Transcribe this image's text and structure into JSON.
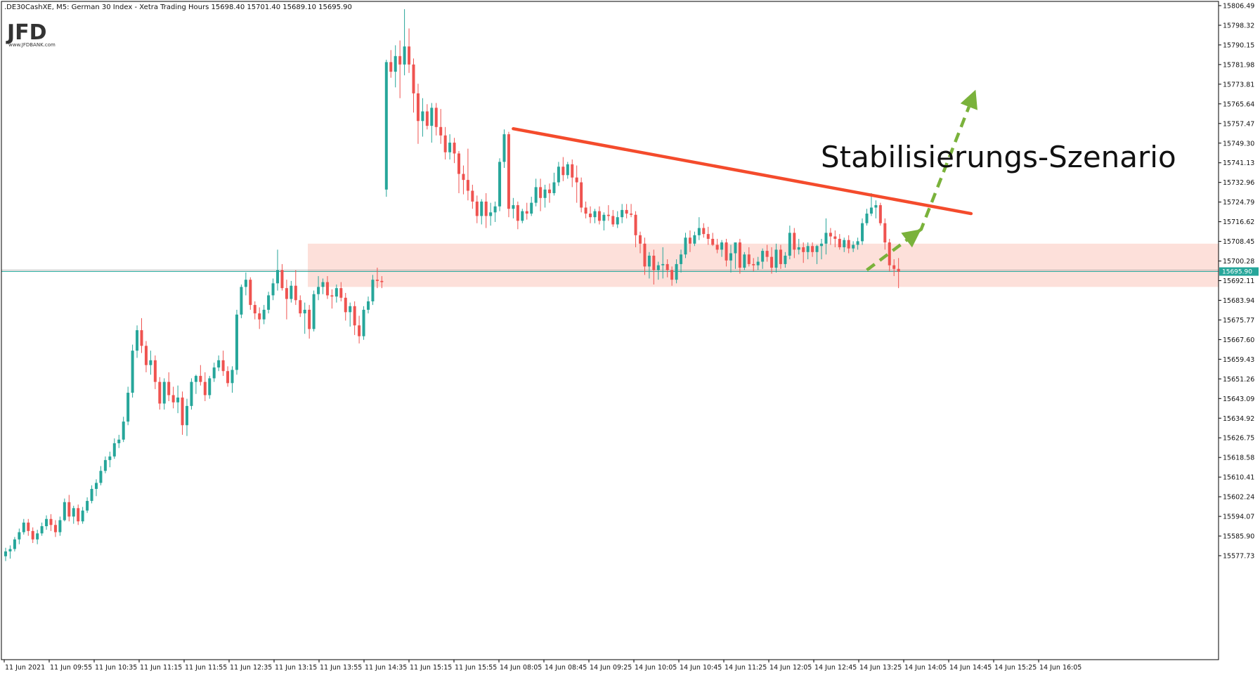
{
  "header": {
    "title": ".DE30CashXE, M5:  German 30 Index  - Xetra Trading Hours  15698.40 15701.40 15689.10 15695.90"
  },
  "logo": {
    "text": "JFD",
    "subtext": "www.JFDBANK.com"
  },
  "annotation": {
    "text": "Stabilisierungs-Szenario"
  },
  "colors": {
    "up": "#26a69a",
    "down": "#ef5350",
    "trendline": "#f44b2c",
    "zone": "#fddbd3",
    "arrow": "#7ab23b",
    "lastprice": "#26a69a"
  },
  "chart_data": {
    "type": "candlestick",
    "ylim": [
      15572,
      15808
    ],
    "y_ticks": [
      "15806.49",
      "15798.32",
      "15790.15",
      "15781.98",
      "15773.81",
      "15765.64",
      "15757.47",
      "15749.30",
      "15741.13",
      "15732.96",
      "15724.79",
      "15716.62",
      "15708.45",
      "15700.28",
      "15692.11",
      "15683.94",
      "15675.77",
      "15667.60",
      "15659.43",
      "15651.26",
      "15643.09",
      "15634.92",
      "15626.75",
      "15618.58",
      "15610.41",
      "15602.24",
      "15594.07",
      "15585.90",
      "15577.73"
    ],
    "x_ticks": [
      "11 Jun 2021",
      "11 Jun 09:55",
      "11 Jun 10:35",
      "11 Jun 11:15",
      "11 Jun 11:55",
      "11 Jun 12:35",
      "11 Jun 13:15",
      "11 Jun 13:55",
      "11 Jun 14:35",
      "11 Jun 15:15",
      "11 Jun 15:55",
      "14 Jun 08:05",
      "14 Jun 08:45",
      "14 Jun 09:25",
      "14 Jun 10:05",
      "14 Jun 10:45",
      "14 Jun 11:25",
      "14 Jun 12:05",
      "14 Jun 12:45",
      "14 Jun 13:25",
      "14 Jun 14:05",
      "14 Jun 14:45",
      "14 Jun 15:25",
      "14 Jun 16:05"
    ],
    "last_price": {
      "value": 15695.9,
      "label": "15695.90"
    },
    "support_zone": {
      "from": 15689.5,
      "to": 15707.5
    },
    "trendline": {
      "from": {
        "bar": 112,
        "price": 15755.3
      },
      "to": {
        "bar": 213,
        "price": 15720.0
      }
    },
    "projection": [
      {
        "bar": 190,
        "price": 15696.5
      },
      {
        "bar": 202,
        "price": 15713.5
      },
      {
        "bar": 214,
        "price": 15771.5
      }
    ],
    "candles": [
      [
        15577.5,
        15581.0,
        15575.5,
        15579.5
      ],
      [
        15579.5,
        15582.0,
        15576.5,
        15580.5
      ],
      [
        15580.5,
        15585.5,
        15579.5,
        15584.5
      ],
      [
        15584.5,
        15589.0,
        15582.5,
        15587.5
      ],
      [
        15587.5,
        15593.0,
        15586.5,
        15591.5
      ],
      [
        15591.5,
        15593.0,
        15586.0,
        15588.0
      ],
      [
        15588.0,
        15589.5,
        15583.0,
        15584.5
      ],
      [
        15584.5,
        15588.5,
        15582.5,
        15587.0
      ],
      [
        15587.0,
        15591.5,
        15586.0,
        15590.0
      ],
      [
        15590.0,
        15594.5,
        15588.5,
        15593.0
      ],
      [
        15593.0,
        15595.0,
        15588.0,
        15590.5
      ],
      [
        15590.5,
        15592.5,
        15585.5,
        15587.5
      ],
      [
        15587.5,
        15594.0,
        15586.0,
        15592.5
      ],
      [
        15592.5,
        15601.5,
        15592.0,
        15600.0
      ],
      [
        15600.0,
        15603.0,
        15592.0,
        15594.0
      ],
      [
        15594.0,
        15598.5,
        15591.0,
        15597.5
      ],
      [
        15597.5,
        15599.0,
        15590.5,
        15592.0
      ],
      [
        15592.0,
        15598.0,
        15591.0,
        15596.5
      ],
      [
        15596.5,
        15602.0,
        15595.5,
        15600.5
      ],
      [
        15600.5,
        15607.0,
        15599.5,
        15605.5
      ],
      [
        15605.5,
        15609.5,
        15602.5,
        15608.0
      ],
      [
        15608.0,
        15615.0,
        15607.0,
        15613.0
      ],
      [
        15613.0,
        15619.0,
        15612.0,
        15617.5
      ],
      [
        15617.5,
        15621.0,
        15614.5,
        15619.0
      ],
      [
        15619.0,
        15626.5,
        15618.0,
        15624.5
      ],
      [
        15624.5,
        15628.0,
        15622.5,
        15626.0
      ],
      [
        15626.0,
        15635.5,
        15625.0,
        15633.5
      ],
      [
        15633.5,
        15648.0,
        15632.0,
        15645.5
      ],
      [
        15645.5,
        15665.5,
        15643.5,
        15663.0
      ],
      [
        15663.0,
        15673.5,
        15660.0,
        15671.5
      ],
      [
        15671.5,
        15676.5,
        15662.0,
        15665.0
      ],
      [
        15665.0,
        15667.0,
        15654.0,
        15657.0
      ],
      [
        15657.0,
        15663.0,
        15653.0,
        15659.0
      ],
      [
        15659.0,
        15661.0,
        15647.0,
        15650.0
      ],
      [
        15650.0,
        15652.0,
        15638.5,
        15641.0
      ],
      [
        15641.0,
        15651.5,
        15638.5,
        15650.0
      ],
      [
        15650.0,
        15654.0,
        15642.0,
        15644.5
      ],
      [
        15644.5,
        15648.0,
        15639.0,
        15641.5
      ],
      [
        15641.5,
        15648.5,
        15637.0,
        15643.5
      ],
      [
        15643.5,
        15646.0,
        15628.0,
        15632.0
      ],
      [
        15632.0,
        15643.0,
        15627.5,
        15640.0
      ],
      [
        15640.0,
        15651.5,
        15638.5,
        15650.0
      ],
      [
        15650.0,
        15653.0,
        15645.0,
        15652.5
      ],
      [
        15652.5,
        15657.0,
        15648.5,
        15650.0
      ],
      [
        15650.0,
        15654.0,
        15642.0,
        15644.5
      ],
      [
        15644.5,
        15652.5,
        15643.0,
        15651.5
      ],
      [
        15651.5,
        15658.0,
        15650.0,
        15656.0
      ],
      [
        15656.0,
        15661.0,
        15654.5,
        15659.0
      ],
      [
        15659.0,
        15663.0,
        15652.5,
        15654.5
      ],
      [
        15654.5,
        15656.5,
        15648.0,
        15649.5
      ],
      [
        15649.5,
        15656.5,
        15645.5,
        15655.0
      ],
      [
        15655.0,
        15680.0,
        15653.0,
        15678.0
      ],
      [
        15678.0,
        15690.5,
        15676.5,
        15689.5
      ],
      [
        15689.5,
        15695.5,
        15686.0,
        15692.5
      ],
      [
        15692.5,
        15693.5,
        15680.0,
        15682.0
      ],
      [
        15682.0,
        15683.5,
        15676.0,
        15678.5
      ],
      [
        15678.5,
        15681.0,
        15672.0,
        15676.0
      ],
      [
        15676.0,
        15682.0,
        15674.0,
        15680.0
      ],
      [
        15680.0,
        15687.5,
        15678.5,
        15686.0
      ],
      [
        15686.0,
        15693.0,
        15684.0,
        15691.0
      ],
      [
        15691.0,
        15705.0,
        15688.0,
        15696.5
      ],
      [
        15696.5,
        15699.0,
        15688.0,
        15689.0
      ],
      [
        15689.0,
        15692.5,
        15676.0,
        15684.5
      ],
      [
        15684.5,
        15692.0,
        15683.0,
        15690.0
      ],
      [
        15690.0,
        15696.5,
        15682.0,
        15684.0
      ],
      [
        15684.0,
        15686.0,
        15677.0,
        15678.5
      ],
      [
        15678.5,
        15683.0,
        15670.0,
        15680.0
      ],
      [
        15680.0,
        15682.0,
        15668.0,
        15672.0
      ],
      [
        15672.0,
        15688.0,
        15671.0,
        15686.5
      ],
      [
        15686.5,
        15694.0,
        15684.0,
        15689.5
      ],
      [
        15689.5,
        15693.0,
        15686.5,
        15691.5
      ],
      [
        15691.5,
        15694.0,
        15684.5,
        15686.0
      ],
      [
        15686.0,
        15688.5,
        15680.5,
        15685.5
      ],
      [
        15685.5,
        15690.5,
        15683.0,
        15689.0
      ],
      [
        15689.0,
        15691.5,
        15683.5,
        15685.0
      ],
      [
        15685.0,
        15687.0,
        15675.5,
        15679.0
      ],
      [
        15679.0,
        15683.0,
        15673.0,
        15681.5
      ],
      [
        15681.5,
        15683.5,
        15669.5,
        15673.5
      ],
      [
        15673.5,
        15677.5,
        15666.0,
        15669.0
      ],
      [
        15669.0,
        15681.5,
        15667.5,
        15680.0
      ],
      [
        15680.0,
        15685.5,
        15678.5,
        15683.5
      ],
      [
        15683.5,
        15694.5,
        15682.0,
        15692.5
      ],
      [
        15692.5,
        15697.5,
        15689.0,
        15692.0
      ],
      [
        15692.0,
        15694.0,
        15689.0,
        15691.5
      ],
      [
        15730.0,
        15784.0,
        15727.0,
        15783.0
      ],
      [
        15783.0,
        15788.0,
        15776.5,
        15779.0
      ],
      [
        15779.0,
        15790.0,
        15772.5,
        15785.5
      ],
      [
        15785.5,
        15792.0,
        15768.0,
        15782.0
      ],
      [
        15782.0,
        15805.0,
        15777.5,
        15789.5
      ],
      [
        15789.5,
        15797.0,
        15778.5,
        15782.0
      ],
      [
        15782.0,
        15784.5,
        15762.0,
        15770.0
      ],
      [
        15770.0,
        15774.0,
        15749.0,
        15758.5
      ],
      [
        15758.5,
        15768.0,
        15752.0,
        15762.5
      ],
      [
        15762.5,
        15765.5,
        15755.0,
        15756.5
      ],
      [
        15756.5,
        15766.0,
        15749.5,
        15764.0
      ],
      [
        15764.0,
        15766.0,
        15752.5,
        15756.0
      ],
      [
        15756.0,
        15763.5,
        15749.0,
        15752.5
      ],
      [
        15752.5,
        15756.0,
        15742.5,
        15745.5
      ],
      [
        15745.5,
        15753.0,
        15742.5,
        15749.5
      ],
      [
        15749.5,
        15751.5,
        15741.0,
        15745.0
      ],
      [
        15745.0,
        15746.0,
        15728.5,
        15736.5
      ],
      [
        15736.5,
        15740.0,
        15728.0,
        15734.0
      ],
      [
        15734.0,
        15747.0,
        15725.5,
        15729.5
      ],
      [
        15729.5,
        15732.0,
        15722.0,
        15725.0
      ],
      [
        15725.0,
        15727.5,
        15716.0,
        15719.0
      ],
      [
        15719.0,
        15726.0,
        15715.5,
        15725.0
      ],
      [
        15725.0,
        15728.5,
        15714.0,
        15719.0
      ],
      [
        15719.0,
        15724.5,
        15715.0,
        15720.5
      ],
      [
        15720.5,
        15725.0,
        15716.5,
        15723.0
      ],
      [
        15723.0,
        15743.0,
        15721.0,
        15741.5
      ],
      [
        15741.5,
        15755.0,
        15739.0,
        15753.0
      ],
      [
        15753.0,
        15754.0,
        15718.5,
        15722.0
      ],
      [
        15722.0,
        15726.5,
        15718.0,
        15723.5
      ],
      [
        15723.5,
        15725.0,
        15713.5,
        15717.0
      ],
      [
        15717.0,
        15722.0,
        15716.0,
        15721.0
      ],
      [
        15721.0,
        15724.5,
        15717.5,
        15720.0
      ],
      [
        15720.0,
        15727.0,
        15719.0,
        15724.5
      ],
      [
        15724.5,
        15734.5,
        15723.0,
        15731.0
      ],
      [
        15731.0,
        15734.5,
        15721.0,
        15726.5
      ],
      [
        15726.5,
        15732.0,
        15722.5,
        15730.0
      ],
      [
        15730.0,
        15732.5,
        15724.5,
        15728.5
      ],
      [
        15728.5,
        15737.0,
        15727.5,
        15733.0
      ],
      [
        15733.0,
        15741.5,
        15731.5,
        15739.5
      ],
      [
        15739.5,
        15743.5,
        15733.5,
        15736.0
      ],
      [
        15736.0,
        15741.5,
        15734.5,
        15740.5
      ],
      [
        15740.5,
        15742.5,
        15731.0,
        15735.0
      ],
      [
        15735.0,
        15740.0,
        15724.5,
        15733.0
      ],
      [
        15733.0,
        15735.0,
        15720.5,
        15722.5
      ],
      [
        15722.5,
        15725.0,
        15718.0,
        15720.0
      ],
      [
        15720.0,
        15723.0,
        15716.0,
        15718.5
      ],
      [
        15718.5,
        15722.0,
        15716.0,
        15721.0
      ],
      [
        15721.0,
        15723.0,
        15715.5,
        15717.0
      ],
      [
        15717.0,
        15720.5,
        15713.0,
        15719.5
      ],
      [
        15719.5,
        15723.5,
        15717.0,
        15719.0
      ],
      [
        15719.0,
        15721.5,
        15714.5,
        15715.5
      ],
      [
        15715.5,
        15721.0,
        15714.0,
        15718.5
      ],
      [
        15718.5,
        15724.0,
        15716.0,
        15721.5
      ],
      [
        15721.5,
        15724.0,
        15718.0,
        15720.0
      ],
      [
        15720.0,
        15724.0,
        15718.5,
        15719.5
      ],
      [
        15719.5,
        15721.0,
        15706.0,
        15711.0
      ],
      [
        15711.0,
        15712.5,
        15703.5,
        15707.5
      ],
      [
        15707.5,
        15710.0,
        15694.5,
        15698.0
      ],
      [
        15698.0,
        15704.0,
        15693.0,
        15702.5
      ],
      [
        15702.5,
        15705.0,
        15690.5,
        15696.5
      ],
      [
        15696.5,
        15700.0,
        15692.5,
        15698.5
      ],
      [
        15698.5,
        15706.0,
        15693.0,
        15699.0
      ],
      [
        15699.0,
        15701.0,
        15693.5,
        15696.5
      ],
      [
        15696.5,
        15698.0,
        15690.0,
        15692.5
      ],
      [
        15692.5,
        15701.0,
        15691.0,
        15699.0
      ],
      [
        15699.0,
        15705.0,
        15695.5,
        15703.0
      ],
      [
        15703.0,
        15712.0,
        15701.5,
        15710.0
      ],
      [
        15710.0,
        15713.0,
        15704.0,
        15707.5
      ],
      [
        15707.5,
        15712.5,
        15706.5,
        15711.0
      ],
      [
        15711.0,
        15718.5,
        15709.0,
        15714.0
      ],
      [
        15714.0,
        15716.0,
        15710.0,
        15711.5
      ],
      [
        15711.5,
        15714.5,
        15707.0,
        15709.5
      ],
      [
        15709.5,
        15712.0,
        15706.5,
        15707.0
      ],
      [
        15707.0,
        15709.5,
        15703.5,
        15705.0
      ],
      [
        15705.0,
        15709.0,
        15702.0,
        15708.0
      ],
      [
        15708.0,
        15709.5,
        15698.0,
        15700.5
      ],
      [
        15700.5,
        15707.0,
        15695.5,
        15703.5
      ],
      [
        15703.5,
        15706.5,
        15697.0,
        15708.0
      ],
      [
        15708.0,
        15709.5,
        15695.0,
        15697.5
      ],
      [
        15697.5,
        15704.0,
        15696.5,
        15703.0
      ],
      [
        15703.0,
        15706.0,
        15698.0,
        15699.0
      ],
      [
        15699.0,
        15701.5,
        15696.0,
        15698.5
      ],
      [
        15698.5,
        15702.0,
        15696.5,
        15700.0
      ],
      [
        15700.0,
        15705.5,
        15697.0,
        15704.5
      ],
      [
        15704.5,
        15707.0,
        15700.0,
        15702.0
      ],
      [
        15702.0,
        15706.0,
        15695.0,
        15697.5
      ],
      [
        15697.5,
        15707.5,
        15695.5,
        15705.0
      ],
      [
        15705.0,
        15707.0,
        15697.0,
        15699.0
      ],
      [
        15699.0,
        15704.0,
        15697.5,
        15702.5
      ],
      [
        15702.5,
        15715.0,
        15701.0,
        15712.0
      ],
      [
        15712.0,
        15714.0,
        15701.5,
        15705.0
      ],
      [
        15705.0,
        15709.5,
        15703.0,
        15706.0
      ],
      [
        15706.0,
        15708.0,
        15699.5,
        15704.0
      ],
      [
        15704.0,
        15708.0,
        15701.0,
        15706.5
      ],
      [
        15706.5,
        15708.0,
        15702.0,
        15704.0
      ],
      [
        15704.0,
        15707.0,
        15699.0,
        15706.5
      ],
      [
        15706.5,
        15709.5,
        15701.0,
        15707.5
      ],
      [
        15707.5,
        15718.0,
        15703.0,
        15712.0
      ],
      [
        15712.0,
        15714.0,
        15707.0,
        15710.5
      ],
      [
        15710.5,
        15713.0,
        15706.0,
        15709.5
      ],
      [
        15709.5,
        15711.5,
        15705.0,
        15706.0
      ],
      [
        15706.0,
        15710.0,
        15704.0,
        15709.0
      ],
      [
        15709.0,
        15711.0,
        15703.5,
        15705.5
      ],
      [
        15705.5,
        15708.5,
        15704.0,
        15707.0
      ],
      [
        15707.0,
        15710.0,
        15705.0,
        15708.5
      ],
      [
        15708.5,
        15718.0,
        15707.0,
        15716.0
      ],
      [
        15716.0,
        15722.0,
        15715.0,
        15720.0
      ],
      [
        15720.0,
        15728.5,
        15719.0,
        15722.5
      ],
      [
        15722.5,
        15725.5,
        15718.0,
        15723.5
      ],
      [
        15723.5,
        15724.5,
        15715.0,
        15716.0
      ],
      [
        15716.0,
        15718.0,
        15705.0,
        15708.0
      ],
      [
        15708.0,
        15709.5,
        15696.0,
        15698.5
      ],
      [
        15698.5,
        15701.0,
        15694.0,
        15697.0
      ],
      [
        15697.0,
        15701.5,
        15689.0,
        15695.9
      ]
    ]
  }
}
